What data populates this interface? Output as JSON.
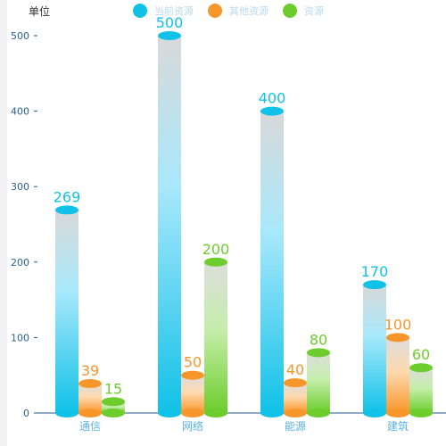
{
  "colors": {
    "series_cyan": "#11c1e8",
    "series_orange": "#f7962a",
    "series_green": "#6ccd2c",
    "axis": "#1f5a8a",
    "tick_label": "#2a5f8f",
    "category_label": "#5ab2e6",
    "legend_text": "#b9d9ee",
    "unit_text": "#333333",
    "left_strip": "#f2f2f5"
  },
  "chart_data": {
    "type": "bar",
    "title": "",
    "unit_label": "单位",
    "categories": [
      "通信",
      "网络",
      "能源",
      "建筑"
    ],
    "series": [
      {
        "name": "当前资源",
        "values": [
          269,
          500,
          400,
          170
        ]
      },
      {
        "name": "其他资源",
        "values": [
          39,
          50,
          40,
          100
        ]
      },
      {
        "name": "资源",
        "values": [
          15,
          200,
          80,
          60
        ]
      }
    ],
    "ylim": [
      0,
      500
    ],
    "yticks": [
      0,
      100,
      200,
      300,
      400,
      500
    ],
    "legend_position": "top",
    "data_labels": true
  }
}
